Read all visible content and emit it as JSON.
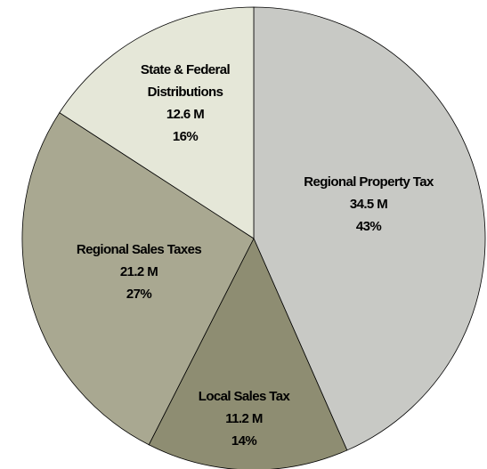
{
  "chart_data": {
    "type": "pie",
    "categories": [
      "Regional Property Tax",
      "Local Sales Tax",
      "Regional Sales Taxes",
      "State & Federal Distributions"
    ],
    "values": [
      34.5,
      11.2,
      21.2,
      12.6
    ],
    "value_labels": [
      "34.5 M",
      "11.2 M",
      "21.2 M",
      "12.6 M"
    ],
    "percents": [
      43,
      14,
      27,
      16
    ],
    "percent_labels": [
      "43%",
      "14%",
      "27%",
      "16%"
    ],
    "colors": [
      "#c8c9c5",
      "#8e8d72",
      "#a9a891",
      "#e5e7d8"
    ]
  }
}
